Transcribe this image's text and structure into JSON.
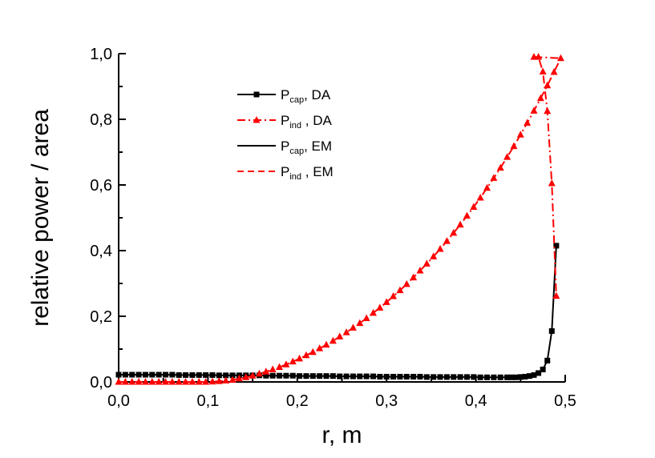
{
  "chart_data": {
    "type": "line",
    "xlabel": "r, m",
    "ylabel": "relative power / area",
    "xlim": [
      0,
      0.5
    ],
    "ylim": [
      0,
      1.0
    ],
    "x_ticks": [
      "0,0",
      "0,1",
      "0,2",
      "0,3",
      "0,4",
      "0,5"
    ],
    "y_ticks": [
      "0,0",
      "0,2",
      "0,4",
      "0,6",
      "0,8",
      "1,0"
    ],
    "grid": false,
    "legend_position": "top-left",
    "series": [
      {
        "name_main": "P",
        "name_sub": "cap",
        "name_rest": ", DA",
        "color": "#000000",
        "line": "solid",
        "marker": "square",
        "points": [
          [
            0.0,
            0.022
          ],
          [
            0.0075,
            0.022
          ],
          [
            0.015,
            0.022
          ],
          [
            0.0225,
            0.022
          ],
          [
            0.03,
            0.022
          ],
          [
            0.0375,
            0.022
          ],
          [
            0.045,
            0.022
          ],
          [
            0.0525,
            0.022
          ],
          [
            0.06,
            0.022
          ],
          [
            0.0675,
            0.021
          ],
          [
            0.075,
            0.021
          ],
          [
            0.0825,
            0.021
          ],
          [
            0.09,
            0.021
          ],
          [
            0.0975,
            0.021
          ],
          [
            0.105,
            0.021
          ],
          [
            0.1125,
            0.02
          ],
          [
            0.12,
            0.02
          ],
          [
            0.1275,
            0.02
          ],
          [
            0.135,
            0.02
          ],
          [
            0.1425,
            0.02
          ],
          [
            0.15,
            0.02
          ],
          [
            0.1575,
            0.02
          ],
          [
            0.165,
            0.019
          ],
          [
            0.1725,
            0.019
          ],
          [
            0.18,
            0.019
          ],
          [
            0.1875,
            0.019
          ],
          [
            0.195,
            0.019
          ],
          [
            0.2025,
            0.018
          ],
          [
            0.21,
            0.018
          ],
          [
            0.2175,
            0.018
          ],
          [
            0.225,
            0.018
          ],
          [
            0.2325,
            0.018
          ],
          [
            0.24,
            0.018
          ],
          [
            0.2475,
            0.017
          ],
          [
            0.255,
            0.017
          ],
          [
            0.2625,
            0.017
          ],
          [
            0.27,
            0.017
          ],
          [
            0.2775,
            0.017
          ],
          [
            0.285,
            0.017
          ],
          [
            0.2925,
            0.016
          ],
          [
            0.3,
            0.016
          ],
          [
            0.3075,
            0.016
          ],
          [
            0.315,
            0.016
          ],
          [
            0.3225,
            0.016
          ],
          [
            0.33,
            0.016
          ],
          [
            0.3375,
            0.016
          ],
          [
            0.345,
            0.015
          ],
          [
            0.3525,
            0.015
          ],
          [
            0.36,
            0.015
          ],
          [
            0.3675,
            0.015
          ],
          [
            0.375,
            0.015
          ],
          [
            0.3825,
            0.015
          ],
          [
            0.39,
            0.015
          ],
          [
            0.3975,
            0.015
          ],
          [
            0.405,
            0.014
          ],
          [
            0.4125,
            0.014
          ],
          [
            0.42,
            0.014
          ],
          [
            0.4275,
            0.014
          ],
          [
            0.435,
            0.014
          ],
          [
            0.44,
            0.014
          ],
          [
            0.445,
            0.014
          ],
          [
            0.45,
            0.015
          ],
          [
            0.455,
            0.016
          ],
          [
            0.46,
            0.018
          ],
          [
            0.465,
            0.021
          ],
          [
            0.47,
            0.027
          ],
          [
            0.475,
            0.038
          ],
          [
            0.48,
            0.065
          ],
          [
            0.485,
            0.155
          ],
          [
            0.49,
            0.415
          ]
        ]
      },
      {
        "name_main": "P",
        "name_sub": "ind",
        "name_rest": " , DA",
        "color": "#ff0000",
        "line": "dashdot",
        "marker": "triangle",
        "points": [
          [
            0.0,
            0.0
          ],
          [
            0.0075,
            0.0
          ],
          [
            0.015,
            0.0
          ],
          [
            0.0225,
            0.0
          ],
          [
            0.03,
            0.0
          ],
          [
            0.0375,
            0.0
          ],
          [
            0.045,
            0.0
          ],
          [
            0.0525,
            0.0
          ],
          [
            0.06,
            0.0
          ],
          [
            0.0675,
            0.0
          ],
          [
            0.075,
            0.0
          ],
          [
            0.0825,
            0.0
          ],
          [
            0.09,
            0.0
          ],
          [
            0.0975,
            0.0
          ],
          [
            0.105,
            0.001
          ],
          [
            0.1125,
            0.002
          ],
          [
            0.12,
            0.004
          ],
          [
            0.1275,
            0.006
          ],
          [
            0.135,
            0.01
          ],
          [
            0.1425,
            0.014
          ],
          [
            0.15,
            0.019
          ],
          [
            0.1575,
            0.025
          ],
          [
            0.165,
            0.031
          ],
          [
            0.1725,
            0.038
          ],
          [
            0.18,
            0.045
          ],
          [
            0.1875,
            0.053
          ],
          [
            0.195,
            0.062
          ],
          [
            0.2025,
            0.071
          ],
          [
            0.21,
            0.081
          ],
          [
            0.2175,
            0.091
          ],
          [
            0.225,
            0.102
          ],
          [
            0.2325,
            0.113
          ],
          [
            0.24,
            0.125
          ],
          [
            0.2475,
            0.138
          ],
          [
            0.255,
            0.151
          ],
          [
            0.2625,
            0.165
          ],
          [
            0.27,
            0.179
          ],
          [
            0.2775,
            0.194
          ],
          [
            0.285,
            0.21
          ],
          [
            0.2925,
            0.226
          ],
          [
            0.3,
            0.243
          ],
          [
            0.3075,
            0.261
          ],
          [
            0.315,
            0.279
          ],
          [
            0.3225,
            0.298
          ],
          [
            0.33,
            0.318
          ],
          [
            0.3375,
            0.339
          ],
          [
            0.345,
            0.36
          ],
          [
            0.3525,
            0.382
          ],
          [
            0.36,
            0.405
          ],
          [
            0.3675,
            0.429
          ],
          [
            0.375,
            0.454
          ],
          [
            0.3825,
            0.479
          ],
          [
            0.39,
            0.506
          ],
          [
            0.3975,
            0.533
          ],
          [
            0.405,
            0.561
          ],
          [
            0.4125,
            0.591
          ],
          [
            0.42,
            0.621
          ],
          [
            0.4275,
            0.652
          ],
          [
            0.435,
            0.685
          ],
          [
            0.4425,
            0.718
          ],
          [
            0.45,
            0.753
          ],
          [
            0.4575,
            0.789
          ],
          [
            0.465,
            0.826
          ],
          [
            0.4725,
            0.864
          ],
          [
            0.48,
            0.903
          ],
          [
            0.4875,
            0.944
          ],
          [
            0.495,
            0.986
          ],
          [
            0.465,
            0.99
          ],
          [
            0.47,
            0.99
          ],
          [
            0.475,
            0.945
          ],
          [
            0.48,
            0.825
          ],
          [
            0.485,
            0.605
          ],
          [
            0.49,
            0.262
          ]
        ]
      },
      {
        "name_main": "P",
        "name_sub": "cap",
        "name_rest": ", EM",
        "color": "#000000",
        "line": "solid",
        "marker": "none",
        "points": []
      },
      {
        "name_main": "P",
        "name_sub": "ind",
        "name_rest": " , EM",
        "color": "#ff0000",
        "line": "dashed",
        "marker": "none",
        "points": []
      }
    ]
  }
}
